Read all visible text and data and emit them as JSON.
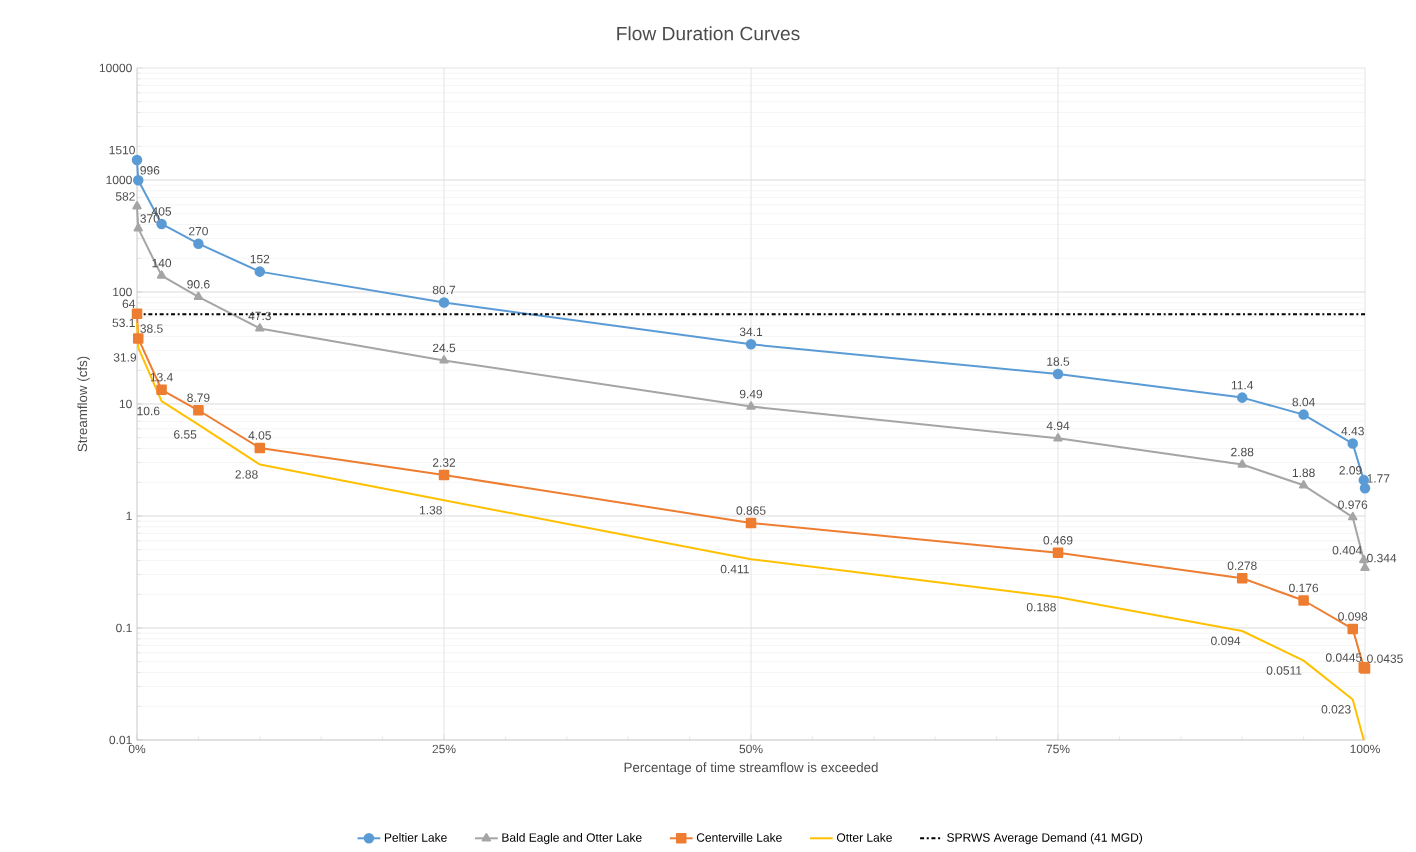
{
  "chart_data": {
    "type": "line",
    "title": "Flow Duration Curves",
    "xlabel": "Percentage of time streamflow is exceeded",
    "ylabel": "Streamflow (cfs)",
    "x": [
      0,
      0.1,
      2,
      5,
      10,
      25,
      50,
      75,
      90,
      95,
      99,
      99.9,
      100
    ],
    "series": [
      {
        "name": "Peltier Lake",
        "color": "#5b9bd5",
        "marker": "circle",
        "values": [
          1510,
          996,
          405,
          270,
          152,
          80.7,
          34.1,
          18.5,
          11.4,
          8.04,
          4.43,
          2.09,
          1.77
        ],
        "value_labels": [
          "1510",
          "996",
          "405",
          "270",
          "152",
          "80.7",
          "34.1",
          "18.5",
          "11.4",
          "8.04",
          "4.43",
          "2.09",
          "1.77"
        ]
      },
      {
        "name": "Bald Eagle and Otter Lake",
        "color": "#a5a5a5",
        "marker": "triangle",
        "values": [
          582,
          370,
          140,
          90.6,
          47.3,
          24.5,
          9.49,
          4.94,
          2.88,
          1.88,
          0.976,
          0.404,
          0.344
        ],
        "value_labels": [
          "582",
          "370",
          "140",
          "90.6",
          "47.3",
          "24.5",
          "9.49",
          "4.94",
          "2.88",
          "1.88",
          "0.976",
          "0.404",
          "0.344"
        ]
      },
      {
        "name": "Centerville Lake",
        "color": "#ed7d31",
        "marker": "square",
        "values": [
          64,
          38.5,
          13.4,
          8.79,
          4.05,
          2.32,
          0.865,
          0.469,
          0.278,
          0.176,
          0.098,
          0.0445,
          0.0435
        ],
        "value_labels": [
          "64",
          "38.5",
          "13.4",
          "8.79",
          "4.05",
          "2.32",
          "0.865",
          "0.469",
          "0.278",
          "0.176",
          "0.098",
          "0.0445",
          "0.0435"
        ]
      },
      {
        "name": "Otter Lake",
        "color": "#ffc000",
        "marker": "none",
        "values": [
          53.1,
          31.9,
          10.6,
          6.55,
          2.88,
          1.38,
          0.411,
          0.188,
          0.094,
          0.0511,
          0.023,
          0.01,
          null
        ],
        "value_labels": [
          "53.1",
          "31.9",
          "10.6",
          "6.55",
          "2.88",
          "1.38",
          "0.411",
          "0.188",
          "0.094",
          "0.0511",
          "0.023",
          null,
          null
        ]
      }
    ],
    "ref_lines": [
      {
        "axis": "y",
        "value": 63.4,
        "label": "SPRWS Average Demand (41 MGD)",
        "color": "#000000",
        "line_style": "dashdot"
      }
    ],
    "log": "y",
    "xlim": [
      0,
      100
    ],
    "ylim": [
      0.01,
      10000
    ],
    "xticks": [
      {
        "value": 0,
        "label": "0%"
      },
      {
        "value": 25,
        "label": "25%"
      },
      {
        "value": 50,
        "label": "50%"
      },
      {
        "value": 75,
        "label": "75%"
      },
      {
        "value": 100,
        "label": "100%"
      }
    ],
    "yticks": [
      0.01,
      0.1,
      1,
      10,
      100,
      1000,
      10000
    ],
    "grid": true,
    "legend": "bottom"
  }
}
